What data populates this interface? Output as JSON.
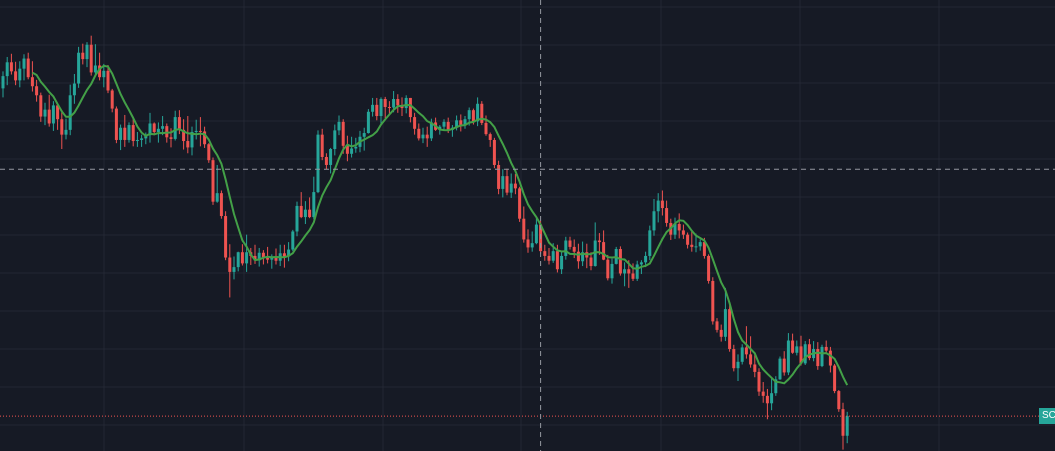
{
  "colors": {
    "background": "#161a25",
    "grid": "#232733",
    "up": "#26a69a",
    "down": "#ef5350",
    "ma": "#43a047",
    "crosshair": "#9598a1",
    "last_price": "#26a69a"
  },
  "last_price_label": "SC",
  "chart_data": {
    "type": "candlestick",
    "grid": true,
    "ylim": [
      0,
      100
    ],
    "crosshair": {
      "candle_index": 128,
      "y": 61.8
    },
    "last_price_line": 15.4,
    "ma_period": 8,
    "candles": [
      [
        77.0,
        80.2,
        75.3,
        79.3
      ],
      [
        79.3,
        82.9,
        77.6,
        81.9
      ],
      [
        81.9,
        83.5,
        79.6,
        80.2
      ],
      [
        80.2,
        82.0,
        77.6,
        78.5
      ],
      [
        78.5,
        82.1,
        77.2,
        80.7
      ],
      [
        80.7,
        83.4,
        78.5,
        82.6
      ],
      [
        82.6,
        83.7,
        78.7,
        79.1
      ],
      [
        79.1,
        82.1,
        76.4,
        77.4
      ],
      [
        77.4,
        78.6,
        74.5,
        75.7
      ],
      [
        75.7,
        76.2,
        70.7,
        71.7
      ],
      [
        71.7,
        74.3,
        70.1,
        73.0
      ],
      [
        73.0,
        75.8,
        69.8,
        70.4
      ],
      [
        70.4,
        74.6,
        69.0,
        73.8
      ],
      [
        73.8,
        74.0,
        69.2,
        71.2
      ],
      [
        71.2,
        72.9,
        65.6,
        68.3
      ],
      [
        68.3,
        71.3,
        67.4,
        69.2
      ],
      [
        69.2,
        77.7,
        68.2,
        75.7
      ],
      [
        75.7,
        79.7,
        74.1,
        77.9
      ],
      [
        77.9,
        84.8,
        77.1,
        83.7
      ],
      [
        83.7,
        85.4,
        81.5,
        82.5
      ],
      [
        82.5,
        85.7,
        81.0,
        85.2
      ],
      [
        85.2,
        86.9,
        79.4,
        80.0
      ],
      [
        80.0,
        85.3,
        79.3,
        81.3
      ],
      [
        81.3,
        83.7,
        78.5,
        79.1
      ],
      [
        79.1,
        81.6,
        77.2,
        80.3
      ],
      [
        80.3,
        81.4,
        76.1,
        76.6
      ],
      [
        76.6,
        76.9,
        72.5,
        73.2
      ],
      [
        73.2,
        73.6,
        66.7,
        67.3
      ],
      [
        67.3,
        70.2,
        65.4,
        69.6
      ],
      [
        69.6,
        72.0,
        66.0,
        67.3
      ],
      [
        67.3,
        70.6,
        66.8,
        70.1
      ],
      [
        70.1,
        71.3,
        66.1,
        67.1
      ],
      [
        67.1,
        68.8,
        66.0,
        67.3
      ],
      [
        67.3,
        68.3,
        66.0,
        67.6
      ],
      [
        67.6,
        68.7,
        66.5,
        68.2
      ],
      [
        68.2,
        72.4,
        66.8,
        70.4
      ],
      [
        70.4,
        70.6,
        68.2,
        68.8
      ],
      [
        68.8,
        70.6,
        66.8,
        69.4
      ],
      [
        69.4,
        71.8,
        68.2,
        69.9
      ],
      [
        69.9,
        70.4,
        66.8,
        67.8
      ],
      [
        67.8,
        69.5,
        65.9,
        67.5
      ],
      [
        67.5,
        72.8,
        67.2,
        71.6
      ],
      [
        71.6,
        72.9,
        68.4,
        69.2
      ],
      [
        69.2,
        71.2,
        65.5,
        67.1
      ],
      [
        67.1,
        71.8,
        64.8,
        65.9
      ],
      [
        65.9,
        69.8,
        64.4,
        68.8
      ],
      [
        68.8,
        71.1,
        67.4,
        69.0
      ],
      [
        69.0,
        71.6,
        66.1,
        68.9
      ],
      [
        68.9,
        69.8,
        65.8,
        66.5
      ],
      [
        66.5,
        66.7,
        63.0,
        63.5
      ],
      [
        63.5,
        64.0,
        55.1,
        55.7
      ],
      [
        55.7,
        62.6,
        55.5,
        57.3
      ],
      [
        57.3,
        57.8,
        52.5,
        53.0
      ],
      [
        53.0,
        53.9,
        44.7,
        45.2
      ],
      [
        45.2,
        47.7,
        37.7,
        42.5
      ],
      [
        42.5,
        45.4,
        41.1,
        43.4
      ],
      [
        43.4,
        46.3,
        42.6,
        46.2
      ],
      [
        46.2,
        47.7,
        43.7,
        44.1
      ],
      [
        44.1,
        49.5,
        42.5,
        46.2
      ],
      [
        46.2,
        47.0,
        43.8,
        45.5
      ],
      [
        45.5,
        47.6,
        44.0,
        44.7
      ],
      [
        44.7,
        47.0,
        43.5,
        46.1
      ],
      [
        46.1,
        46.6,
        43.9,
        45.1
      ],
      [
        45.1,
        47.2,
        44.1,
        44.8
      ],
      [
        44.8,
        45.8,
        43.1,
        45.4
      ],
      [
        45.4,
        46.9,
        43.9,
        44.6
      ],
      [
        44.6,
        47.6,
        43.6,
        46.0
      ],
      [
        46.0,
        47.6,
        43.3,
        45.4
      ],
      [
        45.4,
        48.1,
        44.5,
        46.7
      ],
      [
        46.7,
        50.4,
        46.4,
        50.1
      ],
      [
        50.1,
        55.7,
        49.2,
        54.9
      ],
      [
        54.9,
        57.5,
        52.6,
        52.8
      ],
      [
        52.8,
        55.8,
        51.5,
        54.2
      ],
      [
        54.2,
        56.5,
        52.6,
        52.8
      ],
      [
        52.8,
        60.4,
        52.4,
        57.5
      ],
      [
        57.5,
        69.1,
        57.3,
        68.3
      ],
      [
        68.3,
        69.4,
        63.5,
        64.1
      ],
      [
        64.1,
        64.8,
        61.8,
        62.6
      ],
      [
        62.6,
        65.8,
        61.0,
        65.6
      ],
      [
        65.6,
        70.2,
        64.4,
        69.1
      ],
      [
        69.1,
        71.9,
        68.2,
        70.7
      ],
      [
        70.7,
        71.2,
        64.7,
        66.2
      ],
      [
        66.2,
        68.1,
        63.3,
        64.7
      ],
      [
        64.7,
        67.9,
        64.0,
        65.7
      ],
      [
        65.7,
        67.7,
        64.9,
        66.0
      ],
      [
        66.0,
        69.0,
        65.0,
        67.9
      ],
      [
        67.9,
        69.6,
        65.3,
        68.6
      ],
      [
        68.6,
        73.1,
        68.5,
        72.6
      ],
      [
        72.6,
        75.2,
        71.7,
        73.9
      ],
      [
        73.9,
        75.2,
        71.0,
        71.8
      ],
      [
        71.8,
        75.3,
        70.3,
        75.0
      ],
      [
        75.0,
        75.4,
        71.4,
        73.5
      ],
      [
        73.5,
        74.6,
        72.2,
        73.4
      ],
      [
        73.4,
        76.5,
        72.5,
        75.0
      ],
      [
        75.0,
        75.9,
        72.4,
        73.8
      ],
      [
        73.8,
        75.3,
        71.8,
        73.3
      ],
      [
        73.3,
        75.7,
        72.3,
        75.2
      ],
      [
        75.2,
        75.2,
        70.6,
        71.6
      ],
      [
        71.6,
        72.4,
        68.3,
        69.4
      ],
      [
        69.4,
        70.4,
        67.2,
        67.6
      ],
      [
        67.6,
        69.6,
        66.7,
        68.3
      ],
      [
        68.3,
        69.8,
        66.0,
        67.6
      ],
      [
        67.6,
        71.3,
        67.1,
        70.6
      ],
      [
        70.6,
        71.5,
        69.0,
        69.2
      ],
      [
        69.2,
        70.1,
        68.3,
        69.8
      ],
      [
        69.8,
        71.2,
        69.0,
        70.7
      ],
      [
        70.7,
        71.5,
        68.6,
        69.2
      ],
      [
        69.2,
        70.1,
        67.9,
        69.6
      ],
      [
        69.6,
        71.9,
        69.1,
        71.0
      ],
      [
        71.0,
        72.1,
        68.9,
        70.1
      ],
      [
        70.1,
        71.8,
        69.4,
        71.2
      ],
      [
        71.2,
        73.4,
        70.0,
        72.9
      ],
      [
        72.9,
        73.2,
        70.2,
        70.8
      ],
      [
        70.8,
        75.3,
        69.9,
        74.1
      ],
      [
        74.1,
        74.6,
        70.1,
        70.5
      ],
      [
        70.5,
        71.9,
        68.1,
        68.4
      ],
      [
        68.4,
        68.7,
        66.0,
        67.3
      ],
      [
        67.3,
        67.7,
        62.0,
        62.6
      ],
      [
        62.6,
        63.4,
        57.1,
        58.1
      ],
      [
        58.1,
        61.8,
        56.5,
        60.5
      ],
      [
        60.5,
        61.9,
        56.9,
        57.4
      ],
      [
        57.4,
        61.0,
        56.4,
        59.1
      ],
      [
        59.1,
        60.9,
        57.1,
        58.2
      ],
      [
        58.2,
        58.5,
        51.9,
        52.5
      ],
      [
        52.5,
        54.8,
        48.0,
        48.6
      ],
      [
        48.6,
        50.5,
        46.1,
        47.1
      ],
      [
        47.1,
        50.1,
        46.3,
        47.9
      ],
      [
        47.9,
        52.8,
        47.7,
        51.4
      ],
      [
        51.4,
        52.1,
        45.9,
        46.4
      ],
      [
        46.4,
        47.6,
        44.6,
        45.5
      ],
      [
        45.5,
        47.0,
        43.9,
        44.6
      ],
      [
        44.6,
        47.9,
        44.2,
        46.4
      ],
      [
        46.4,
        47.6,
        42.4,
        43.0
      ],
      [
        43.0,
        46.5,
        42.1,
        45.5
      ],
      [
        45.5,
        49.1,
        44.8,
        48.4
      ],
      [
        48.4,
        49.1,
        46.7,
        47.2
      ],
      [
        47.2,
        48.6,
        45.1,
        46.3
      ],
      [
        46.3,
        47.8,
        43.1,
        44.5
      ],
      [
        44.5,
        48.2,
        43.6,
        46.2
      ],
      [
        46.2,
        47.8,
        43.2,
        45.2
      ],
      [
        45.2,
        46.2,
        42.8,
        43.6
      ],
      [
        43.6,
        51.8,
        43.5,
        48.4
      ],
      [
        48.4,
        49.8,
        45.7,
        48.1
      ],
      [
        48.1,
        50.3,
        44.7,
        44.8
      ],
      [
        44.8,
        45.7,
        40.9,
        41.3
      ],
      [
        41.3,
        45.0,
        40.3,
        44.0
      ],
      [
        44.0,
        47.2,
        43.9,
        46.8
      ],
      [
        46.8,
        47.3,
        41.8,
        42.2
      ],
      [
        42.2,
        44.3,
        39.8,
        43.0
      ],
      [
        43.0,
        44.7,
        39.5,
        42.2
      ],
      [
        42.2,
        44.1,
        40.8,
        41.2
      ],
      [
        41.2,
        44.6,
        40.8,
        43.9
      ],
      [
        43.9,
        44.7,
        42.1,
        44.3
      ],
      [
        44.3,
        46.3,
        43.4,
        45.5
      ],
      [
        45.5,
        51.2,
        44.7,
        50.3
      ],
      [
        50.3,
        56.2,
        49.3,
        53.9
      ],
      [
        53.9,
        57.3,
        51.8,
        55.9
      ],
      [
        55.9,
        57.8,
        53.1,
        54.5
      ],
      [
        54.5,
        55.9,
        51.0,
        51.7
      ],
      [
        51.7,
        52.5,
        48.5,
        49.5
      ],
      [
        49.5,
        52.7,
        48.7,
        51.5
      ],
      [
        51.5,
        53.5,
        48.8,
        50.3
      ],
      [
        50.3,
        51.4,
        48.7,
        49.5
      ],
      [
        49.5,
        49.9,
        46.9,
        47.6
      ],
      [
        47.6,
        50.1,
        46.3,
        47.2
      ],
      [
        47.2,
        49.7,
        46.2,
        47.3
      ],
      [
        47.3,
        48.6,
        46.5,
        48.1
      ],
      [
        48.1,
        48.9,
        45.0,
        45.5
      ],
      [
        45.5,
        45.8,
        40.3,
        40.8
      ],
      [
        40.8,
        41.5,
        32.6,
        33.2
      ],
      [
        33.2,
        33.8,
        31.1,
        31.6
      ],
      [
        31.6,
        32.6,
        29.4,
        30.3
      ],
      [
        30.3,
        39.5,
        29.5,
        35.5
      ],
      [
        35.5,
        36.2,
        27.5,
        28.0
      ],
      [
        28.0,
        28.8,
        23.8,
        24.4
      ],
      [
        24.4,
        27.0,
        22.0,
        25.6
      ],
      [
        25.6,
        28.9,
        25.1,
        28.3
      ],
      [
        28.3,
        32.3,
        26.2,
        27.0
      ],
      [
        27.0,
        30.4,
        24.5,
        25.1
      ],
      [
        25.1,
        27.3,
        22.7,
        23.7
      ],
      [
        23.7,
        24.4,
        19.2,
        20.0
      ],
      [
        20.0,
        21.8,
        17.9,
        19.2
      ],
      [
        19.2,
        20.5,
        14.8,
        17.8
      ],
      [
        17.8,
        22.5,
        16.5,
        19.7
      ],
      [
        19.7,
        22.9,
        19.2,
        22.3
      ],
      [
        22.3,
        26.6,
        22.2,
        26.2
      ],
      [
        26.2,
        27.6,
        23.0,
        23.6
      ],
      [
        23.6,
        31.0,
        23.1,
        29.6
      ],
      [
        29.6,
        30.9,
        27.1,
        27.3
      ],
      [
        27.3,
        29.6,
        26.8,
        28.5
      ],
      [
        28.5,
        30.5,
        24.9,
        25.3
      ],
      [
        25.3,
        29.5,
        25.0,
        28.9
      ],
      [
        28.9,
        29.9,
        25.9,
        26.3
      ],
      [
        26.3,
        29.5,
        25.7,
        28.0
      ],
      [
        28.0,
        29.3,
        24.1,
        24.8
      ],
      [
        24.8,
        28.8,
        24.6,
        28.4
      ],
      [
        28.4,
        29.6,
        27.1,
        27.7
      ],
      [
        27.7,
        28.4,
        23.6,
        24.9
      ],
      [
        24.9,
        25.2,
        19.7,
        20.1
      ],
      [
        20.1,
        20.3,
        16.2,
        16.7
      ],
      [
        16.7,
        17.9,
        9.1,
        11.7
      ],
      [
        11.7,
        16.2,
        10.3,
        15.4
      ]
    ]
  }
}
